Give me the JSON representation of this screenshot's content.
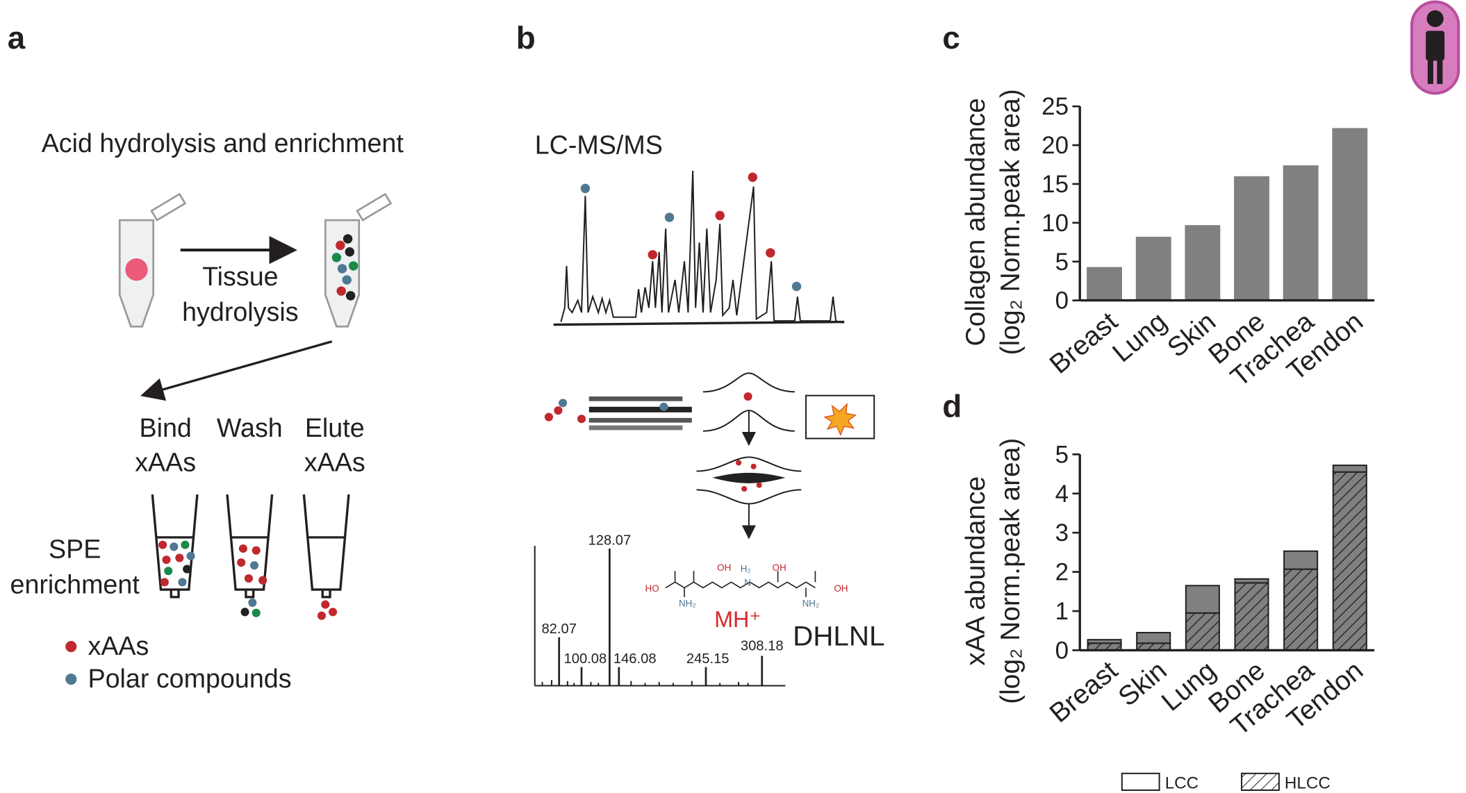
{
  "panel_a": {
    "label": "a",
    "title": "Acid hydrolysis and enrichment",
    "step": [
      "Tissue",
      "hydrolysis"
    ],
    "columns": [
      [
        "Bind",
        "xAAs"
      ],
      [
        "Wash"
      ],
      [
        "Elute",
        "xAAs"
      ]
    ],
    "spe": [
      "SPE",
      "enrichment"
    ],
    "legend": [
      "xAAs",
      "Polar compounds"
    ]
  },
  "panel_b": {
    "label": "b",
    "title": "LC-MS/MS",
    "peaks": [
      82.07,
      100.08,
      128.07,
      146.08,
      245.15,
      308.18
    ],
    "structure_labels": [
      "HO",
      "OH",
      "H₂",
      "N",
      "OH",
      "OH",
      "NH₂",
      "NH₂"
    ],
    "ion": "MH⁺",
    "compound": "DHLNL"
  },
  "chart_data": [
    {
      "type": "bar",
      "panel": "c",
      "categories": [
        "Breast",
        "Lung",
        "Skin",
        "Bone",
        "Trachea",
        "Tendon"
      ],
      "values": [
        4.3,
        8.2,
        9.7,
        16.0,
        17.4,
        22.2
      ],
      "color": "#808080",
      "ylabel": [
        "Collagen abundance",
        "(log₂ Norm.peak area)"
      ],
      "ylim": [
        0,
        25
      ],
      "yticks": [
        0,
        5,
        10,
        15,
        20,
        25
      ]
    },
    {
      "type": "stacked_bar",
      "panel": "d",
      "categories": [
        "Breast",
        "Skin",
        "Lung",
        "Bone",
        "Trachea",
        "Tendon"
      ],
      "series": [
        {
          "name": "HLCC",
          "color": "#808080",
          "pattern": "hatch",
          "values": [
            0.18,
            0.18,
            0.95,
            1.72,
            2.07,
            4.55
          ]
        },
        {
          "name": "LCC",
          "color": "#808080",
          "values": [
            0.09,
            0.27,
            0.7,
            0.1,
            0.46,
            0.17
          ]
        }
      ],
      "ylabel": [
        "xAA abundance",
        "(log₂ Norm.peak area)"
      ],
      "ylim": [
        0,
        5
      ],
      "yticks": [
        0,
        1,
        2,
        3,
        4,
        5
      ]
    }
  ]
}
